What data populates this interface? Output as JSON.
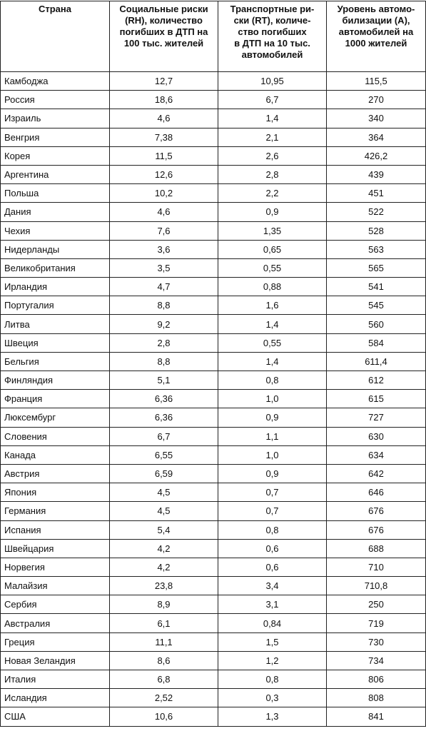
{
  "table": {
    "header": [
      [
        "Страна"
      ],
      [
        "Социальные риски",
        "(RH), количество",
        "погибших в ДТП на",
        "100 тыс. жителей"
      ],
      [
        "Транспортные ри-",
        "ски (RT), количе-",
        "ство погибших",
        "в ДТП на 10 тыс.",
        "автомобилей"
      ],
      [
        "Уровень автомо-",
        "билизации (A),",
        "автомобилей на",
        "1000 жителей"
      ]
    ],
    "rows": [
      [
        "Камбоджа",
        "12,7",
        "10,95",
        "115,5"
      ],
      [
        "Россия",
        "18,6",
        "6,7",
        "270"
      ],
      [
        "Израиль",
        "4,6",
        "1,4",
        "340"
      ],
      [
        "Венгрия",
        "7,38",
        "2,1",
        "364"
      ],
      [
        "Корея",
        "11,5",
        "2,6",
        "426,2"
      ],
      [
        "Аргентина",
        "12,6",
        "2,8",
        "439"
      ],
      [
        "Польша",
        "10,2",
        "2,2",
        "451"
      ],
      [
        "Дания",
        "4,6",
        "0,9",
        "522"
      ],
      [
        "Чехия",
        "7,6",
        "1,35",
        "528"
      ],
      [
        "Нидерланды",
        "3,6",
        "0,65",
        "563"
      ],
      [
        "Великобритания",
        "3,5",
        "0,55",
        "565"
      ],
      [
        "Ирландия",
        "4,7",
        "0,88",
        "541"
      ],
      [
        "Португалия",
        "8,8",
        "1,6",
        "545"
      ],
      [
        "Литва",
        "9,2",
        "1,4",
        "560"
      ],
      [
        "Швеция",
        "2,8",
        "0,55",
        "584"
      ],
      [
        "Бельгия",
        "8,8",
        "1,4",
        "611,4"
      ],
      [
        "Финляндия",
        "5,1",
        "0,8",
        "612"
      ],
      [
        "Франция",
        "6,36",
        "1,0",
        "615"
      ],
      [
        "Люксембург",
        "6,36",
        "0,9",
        "727"
      ],
      [
        "Словения",
        "6,7",
        "1,1",
        "630"
      ],
      [
        "Канада",
        "6,55",
        "1,0",
        "634"
      ],
      [
        "Австрия",
        "6,59",
        "0,9",
        "642"
      ],
      [
        "Япония",
        "4,5",
        "0,7",
        "646"
      ],
      [
        "Германия",
        "4,5",
        "0,7",
        "676"
      ],
      [
        "Испания",
        "5,4",
        "0,8",
        "676"
      ],
      [
        "Швейцария",
        "4,2",
        "0,6",
        "688"
      ],
      [
        "Норвегия",
        "4,2",
        "0,6",
        "710"
      ],
      [
        "Малайзия",
        "23,8",
        "3,4",
        "710,8"
      ],
      [
        "Сербия",
        "8,9",
        "3,1",
        "250"
      ],
      [
        "Австралия",
        "6,1",
        "0,84",
        "719"
      ],
      [
        "Греция",
        "11,1",
        "1,5",
        "730"
      ],
      [
        "Новая Зеландия",
        "8,6",
        "1,2",
        "734"
      ],
      [
        "Италия",
        "6,8",
        "0,8",
        "806"
      ],
      [
        "Исландия",
        "2,52",
        "0,3",
        "808"
      ],
      [
        "США",
        "10,6",
        "1,3",
        "841"
      ]
    ]
  }
}
